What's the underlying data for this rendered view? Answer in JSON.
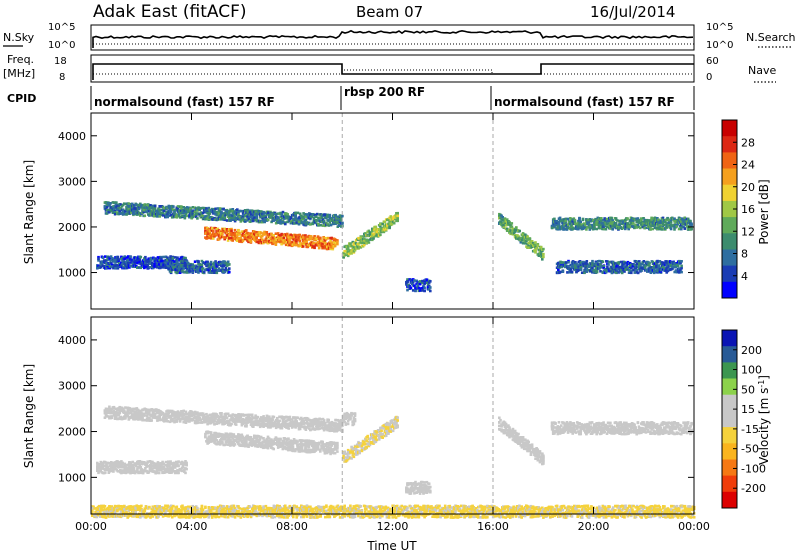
{
  "header": {
    "site": "Adak East (fitACF)",
    "beam": "Beam 07",
    "date": "16/Jul/2014"
  },
  "sky_panel": {
    "left_label": "N.Sky",
    "right_label": "N.Search",
    "left_ticks": [
      "10^5",
      "10^0"
    ],
    "right_ticks": [
      "10^5",
      "10^0"
    ]
  },
  "freq_panel": {
    "left_label_1": "Freq.",
    "left_label_2": "[MHz]",
    "right_label": "Nave",
    "left_ticks": [
      "18",
      "8"
    ],
    "right_ticks": [
      "60",
      "0"
    ]
  },
  "cpid": {
    "label": "CPID",
    "segments": [
      {
        "start_h": 0,
        "end_h": 10,
        "text": "normalsound (fast) 157 RF"
      },
      {
        "start_h": 10,
        "end_h": 16,
        "text": "rbsp 200 RF"
      },
      {
        "start_h": 16,
        "end_h": 24,
        "text": "normalsound (fast) 157 RF"
      }
    ]
  },
  "colors": {
    "power_scale": [
      "#0000ff",
      "#1a3cb4",
      "#2e6ea0",
      "#3c8c6e",
      "#5faa5a",
      "#a0c846",
      "#f0d232",
      "#f5a01e",
      "#f06414",
      "#dc2814",
      "#c80000"
    ],
    "velocity_scale": [
      "#dc0000",
      "#f03c0a",
      "#f57814",
      "#fab41e",
      "#f5d23c",
      "#c8c8c8",
      "#c8c8c8",
      "#8cd24b",
      "#3c9650",
      "#285a96",
      "#0a14b4"
    ]
  },
  "chart_data": [
    {
      "type": "heatmap",
      "name": "power_panel",
      "ylabel": "Slant Range [km]",
      "yticks": [
        "1000",
        "2000",
        "3000",
        "4000"
      ],
      "ylim": [
        200,
        4500
      ],
      "xlim": [
        0,
        24
      ],
      "colorbar": {
        "label": "Power [dB]",
        "ticks": [
          "4",
          "8",
          "12",
          "16",
          "20",
          "24",
          "28"
        ],
        "range": [
          0,
          30
        ]
      },
      "mode_boundaries_h": [
        10,
        16
      ],
      "echo_bands": [
        {
          "start_h": 0.5,
          "end_h": 10.0,
          "range_km_start": 2450,
          "range_km_end": 2150,
          "level": 8
        },
        {
          "start_h": 4.5,
          "end_h": 9.8,
          "range_km_start": 1900,
          "range_km_end": 1650,
          "level": 22
        },
        {
          "start_h": 0.2,
          "end_h": 3.8,
          "range_km": 1250,
          "level": 5
        },
        {
          "start_h": 3.0,
          "end_h": 5.5,
          "range_km": 1150,
          "level": 6
        },
        {
          "start_h": 10.0,
          "end_h": 12.2,
          "range_km_start": 1450,
          "range_km_end": 2250,
          "level": 14
        },
        {
          "start_h": 12.5,
          "end_h": 13.5,
          "range_km": 750,
          "level": 5
        },
        {
          "start_h": 16.2,
          "end_h": 18.0,
          "range_km_start": 2200,
          "range_km_end": 1400,
          "level": 12
        },
        {
          "start_h": 18.3,
          "end_h": 23.9,
          "range_km": 2100,
          "level": 9
        },
        {
          "start_h": 18.5,
          "end_h": 23.5,
          "range_km": 1150,
          "level": 6
        }
      ]
    },
    {
      "type": "heatmap",
      "name": "velocity_panel",
      "ylabel": "Slant Range [km]",
      "yticks": [
        "1000",
        "2000",
        "3000",
        "4000"
      ],
      "ylim": [
        200,
        4500
      ],
      "xlim": [
        0,
        24
      ],
      "xlabel": "Time UT",
      "xticks": [
        "00:00",
        "04:00",
        "08:00",
        "12:00",
        "16:00",
        "20:00",
        "00:00"
      ],
      "colorbar": {
        "label": "Velocity [m s^-1]",
        "ticks": [
          "200",
          "100",
          "50",
          "15",
          "-15",
          "-50",
          "-100",
          "-200"
        ],
        "range": [
          -250,
          250
        ]
      },
      "mode_boundaries_h": [
        10,
        16
      ],
      "echo_bands": [
        {
          "start_h": 0.5,
          "end_h": 10.0,
          "range_km_start": 2450,
          "range_km_end": 2150,
          "level": 0
        },
        {
          "start_h": 4.5,
          "end_h": 9.8,
          "range_km_start": 1900,
          "range_km_end": 1650,
          "level": 0
        },
        {
          "start_h": 0.2,
          "end_h": 3.8,
          "range_km": 1250,
          "level": 0
        },
        {
          "start_h": 10.0,
          "end_h": 10.5,
          "range_km": 2300,
          "level": 40
        },
        {
          "start_h": 10.0,
          "end_h": 12.2,
          "range_km_start": 1450,
          "range_km_end": 2250,
          "level": -20
        },
        {
          "start_h": 12.5,
          "end_h": 13.5,
          "range_km": 800,
          "level": 30
        },
        {
          "start_h": 16.2,
          "end_h": 18.0,
          "range_km_start": 2200,
          "range_km_end": 1400,
          "level": 0
        },
        {
          "start_h": 18.3,
          "end_h": 23.9,
          "range_km": 2100,
          "level": 0
        },
        {
          "start_h": 0.0,
          "end_h": 24.0,
          "range_km": 280,
          "level": -30
        }
      ]
    }
  ]
}
